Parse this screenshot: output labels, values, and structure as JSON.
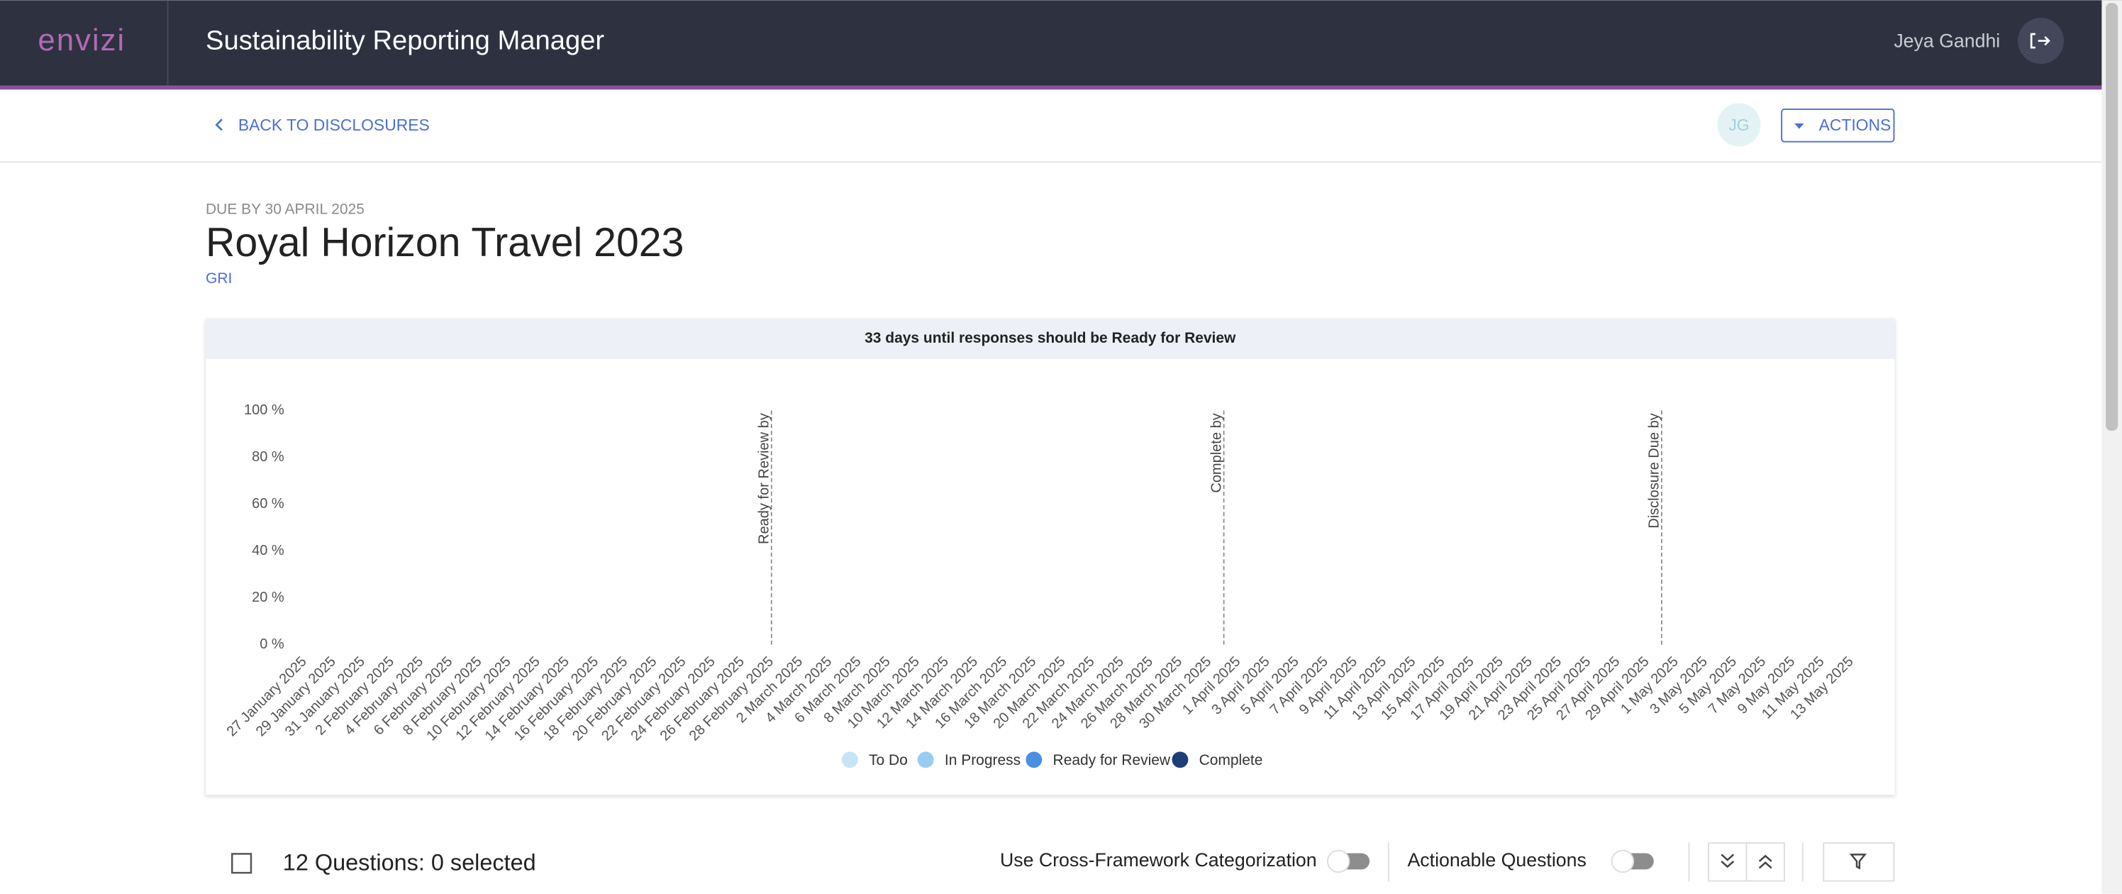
{
  "header": {
    "logo": "envizi",
    "app_title": "Sustainability Reporting Manager",
    "user": "Jeya Gandhi"
  },
  "nav": {
    "back": "BACK TO DISCLOSURES",
    "avatar": "JG",
    "actions": "ACTIONS"
  },
  "page": {
    "due": "DUE BY 30 APRIL 2025",
    "title": "Royal Horizon Travel 2023",
    "framework": "GRI"
  },
  "chart": {
    "type": "line",
    "banner": "33 days until responses should be Ready for Review",
    "categories": [
      "27 January 2025",
      "29 January 2025",
      "31 January 2025",
      "2 February 2025",
      "4 February 2025",
      "6 February 2025",
      "8 February 2025",
      "10 February 2025",
      "12 February 2025",
      "14 February 2025",
      "16 February 2025",
      "18 February 2025",
      "20 February 2025",
      "22 February 2025",
      "24 February 2025",
      "26 February 2025",
      "28 February 2025",
      "2 March 2025",
      "4 March 2025",
      "6 March 2025",
      "8 March 2025",
      "10 March 2025",
      "12 March 2025",
      "14 March 2025",
      "16 March 2025",
      "18 March 2025",
      "20 March 2025",
      "22 March 2025",
      "24 March 2025",
      "26 March 2025",
      "28 March 2025",
      "30 March 2025",
      "1 April 2025",
      "3 April 2025",
      "5 April 2025",
      "7 April 2025",
      "9 April 2025",
      "11 April 2025",
      "13 April 2025",
      "15 April 2025",
      "17 April 2025",
      "19 April 2025",
      "21 April 2025",
      "23 April 2025",
      "25 April 2025",
      "27 April 2025",
      "29 April 2025",
      "1 May 2025",
      "3 May 2025",
      "5 May 2025",
      "7 May 2025",
      "9 May 2025",
      "11 May 2025",
      "13 May 2025"
    ],
    "ylim": [
      0,
      100
    ],
    "yticks": [
      {
        "value": 0,
        "label": "0 %"
      },
      {
        "value": 20,
        "label": "20 %"
      },
      {
        "value": 40,
        "label": "40 %"
      },
      {
        "value": 60,
        "label": "60 %"
      },
      {
        "value": 80,
        "label": "80 %"
      },
      {
        "value": 100,
        "label": "100 %"
      }
    ],
    "series": [
      {
        "name": "To Do",
        "color": "#c6e4f7"
      },
      {
        "name": "In Progress",
        "color": "#98cdf0"
      },
      {
        "name": "Ready for Review",
        "color": "#4a90e2"
      },
      {
        "name": "Complete",
        "color": "#1c3f78"
      }
    ],
    "annotations": [
      {
        "label": "Ready for Review by",
        "x": 16
      },
      {
        "label": "Complete by",
        "x": 31.5
      },
      {
        "label": "Disclosure Due by",
        "x": 46.5
      }
    ]
  },
  "toolbar": {
    "count": "12 Questions: 0 selected",
    "cross_framework": "Use Cross-Framework Categorization",
    "actionable": "Actionable Questions"
  }
}
